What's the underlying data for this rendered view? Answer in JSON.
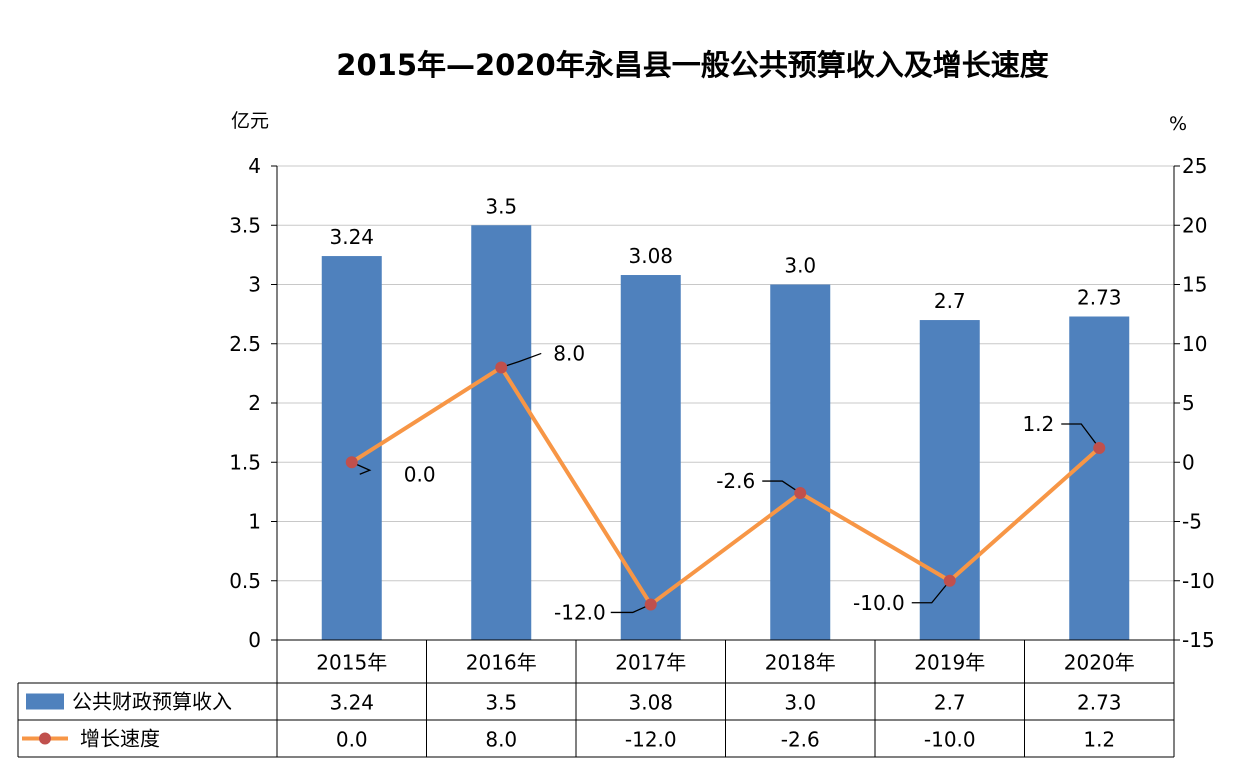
{
  "chart_data": {
    "type": "bar",
    "title": "2015年—2020年永昌县一般公共预算收入及增长速度",
    "left_unit": "亿元",
    "right_unit": "%",
    "categories": [
      "2015年",
      "2016年",
      "2017年",
      "2018年",
      "2019年",
      "2020年"
    ],
    "series": [
      {
        "name": "公共财政预算收入",
        "kind": "bar",
        "axis": "left",
        "color": "#4F81BD",
        "values": [
          3.24,
          3.5,
          3.08,
          3.0,
          2.7,
          2.73
        ],
        "labels": [
          "3.24",
          "3.5",
          "3.08",
          "3.0",
          "2.7",
          "2.73"
        ]
      },
      {
        "name": "增长速度",
        "kind": "line",
        "axis": "right",
        "color": "#F79646",
        "marker_color": "#C0504D",
        "values": [
          0.0,
          8.0,
          -12.0,
          -2.6,
          -10.0,
          1.2
        ],
        "labels": [
          "0.0",
          "8.0",
          "-12.0",
          "-2.6",
          "-10.0",
          "1.2"
        ]
      }
    ],
    "y_left": {
      "min": 0,
      "max": 4,
      "ticks": [
        "0",
        "0.5",
        "1",
        "1.5",
        "2",
        "2.5",
        "3",
        "3.5",
        "4"
      ]
    },
    "y_right": {
      "min": -15,
      "max": 25,
      "ticks": [
        "-15",
        "-10",
        "-5",
        "0",
        "5",
        "10",
        "15",
        "20",
        "25"
      ]
    },
    "grid": true,
    "legend": "data-table-bottom"
  }
}
